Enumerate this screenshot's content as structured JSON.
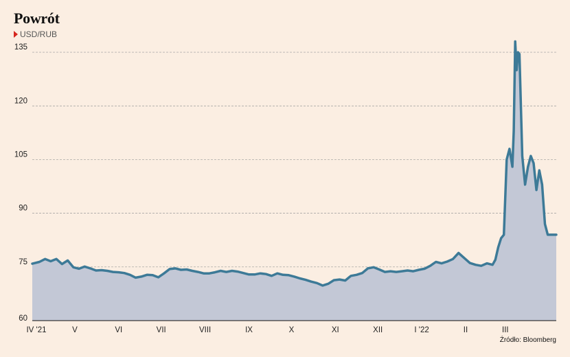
{
  "header": {
    "title": "Powrót",
    "subtitle": "USD/RUB",
    "source": "Źródło: Bloomberg"
  },
  "colors": {
    "background": "#fbeee2",
    "line": "#3d7a97",
    "area": "#c3c8d6",
    "marker": "#d6261e",
    "grid": "#9a9a9a"
  },
  "chart_data": {
    "type": "area",
    "title": "Powrót",
    "subtitle": "USD/RUB",
    "xlabel": "",
    "ylabel": "",
    "ylim": [
      60,
      140
    ],
    "yticks": [
      60,
      75,
      90,
      105,
      120,
      135
    ],
    "grid": true,
    "legend": "none",
    "xticks": [
      "IV '21",
      "V",
      "VI",
      "VII",
      "VIII",
      "IX",
      "X",
      "XI",
      "XII",
      "I '22",
      "II",
      "III"
    ],
    "x": [
      "2021-04-01",
      "2021-04-06",
      "2021-04-10",
      "2021-04-14",
      "2021-04-18",
      "2021-04-22",
      "2021-04-26",
      "2021-04-30",
      "2021-05-04",
      "2021-05-08",
      "2021-05-12",
      "2021-05-16",
      "2021-05-20",
      "2021-05-24",
      "2021-05-28",
      "2021-06-01",
      "2021-06-05",
      "2021-06-09",
      "2021-06-13",
      "2021-06-17",
      "2021-06-21",
      "2021-06-25",
      "2021-06-29",
      "2021-07-03",
      "2021-07-07",
      "2021-07-11",
      "2021-07-15",
      "2021-07-19",
      "2021-07-23",
      "2021-07-27",
      "2021-07-31",
      "2021-08-04",
      "2021-08-08",
      "2021-08-12",
      "2021-08-16",
      "2021-08-20",
      "2021-08-24",
      "2021-08-28",
      "2021-09-01",
      "2021-09-05",
      "2021-09-09",
      "2021-09-13",
      "2021-09-17",
      "2021-09-21",
      "2021-09-25",
      "2021-09-29",
      "2021-10-03",
      "2021-10-07",
      "2021-10-11",
      "2021-10-15",
      "2021-10-19",
      "2021-10-23",
      "2021-10-27",
      "2021-10-31",
      "2021-11-04",
      "2021-11-08",
      "2021-11-12",
      "2021-11-16",
      "2021-11-20",
      "2021-11-24",
      "2021-11-28",
      "2021-12-02",
      "2021-12-06",
      "2021-12-10",
      "2021-12-14",
      "2021-12-18",
      "2021-12-22",
      "2021-12-26",
      "2021-12-30",
      "2022-01-03",
      "2022-01-07",
      "2022-01-11",
      "2022-01-15",
      "2022-01-19",
      "2022-01-23",
      "2022-01-27",
      "2022-01-31",
      "2022-02-04",
      "2022-02-08",
      "2022-02-12",
      "2022-02-16",
      "2022-02-20",
      "2022-02-22",
      "2022-02-24",
      "2022-02-26",
      "2022-02-28",
      "2022-03-02",
      "2022-03-04",
      "2022-03-06",
      "2022-03-07",
      "2022-03-08",
      "2022-03-09",
      "2022-03-10",
      "2022-03-11",
      "2022-03-13",
      "2022-03-15",
      "2022-03-17",
      "2022-03-19",
      "2022-03-21",
      "2022-03-23",
      "2022-03-25",
      "2022-03-27",
      "2022-03-29",
      "2022-03-31",
      "2022-04-02",
      "2022-04-04",
      "2022-04-06"
    ],
    "series": [
      {
        "values": [
          75.9,
          76.4,
          77.2,
          76.6,
          77.2,
          75.8,
          76.8,
          74.9,
          74.5,
          75.1,
          74.6,
          74.0,
          74.1,
          73.9,
          73.6,
          73.5,
          73.3,
          72.8,
          72.0,
          72.3,
          72.8,
          72.7,
          72.1,
          73.2,
          74.4,
          74.6,
          74.2,
          74.3,
          73.9,
          73.6,
          73.2,
          73.2,
          73.5,
          73.9,
          73.6,
          73.9,
          73.7,
          73.3,
          72.9,
          72.9,
          73.2,
          73.0,
          72.5,
          73.2,
          72.8,
          72.7,
          72.3,
          71.8,
          71.4,
          70.9,
          70.5,
          69.8,
          70.3,
          71.3,
          71.5,
          71.2,
          72.5,
          72.8,
          73.3,
          74.6,
          74.9,
          74.3,
          73.6,
          73.8,
          73.6,
          73.8,
          74.0,
          73.8,
          74.2,
          74.5,
          75.3,
          76.4,
          76.0,
          76.5,
          77.2,
          78.9,
          77.5,
          76.1,
          75.6,
          75.3,
          76.0,
          75.6,
          77.0,
          80.5,
          83.0,
          84.0,
          105.0,
          108.0,
          103.0,
          113.0,
          138.0,
          130.0,
          135.0,
          134.5,
          106.0,
          98.0,
          103.0,
          106.0,
          104.0,
          96.5,
          102.0,
          98.0,
          87.0,
          84.0,
          84.0,
          84.0,
          84.0
        ]
      }
    ]
  }
}
